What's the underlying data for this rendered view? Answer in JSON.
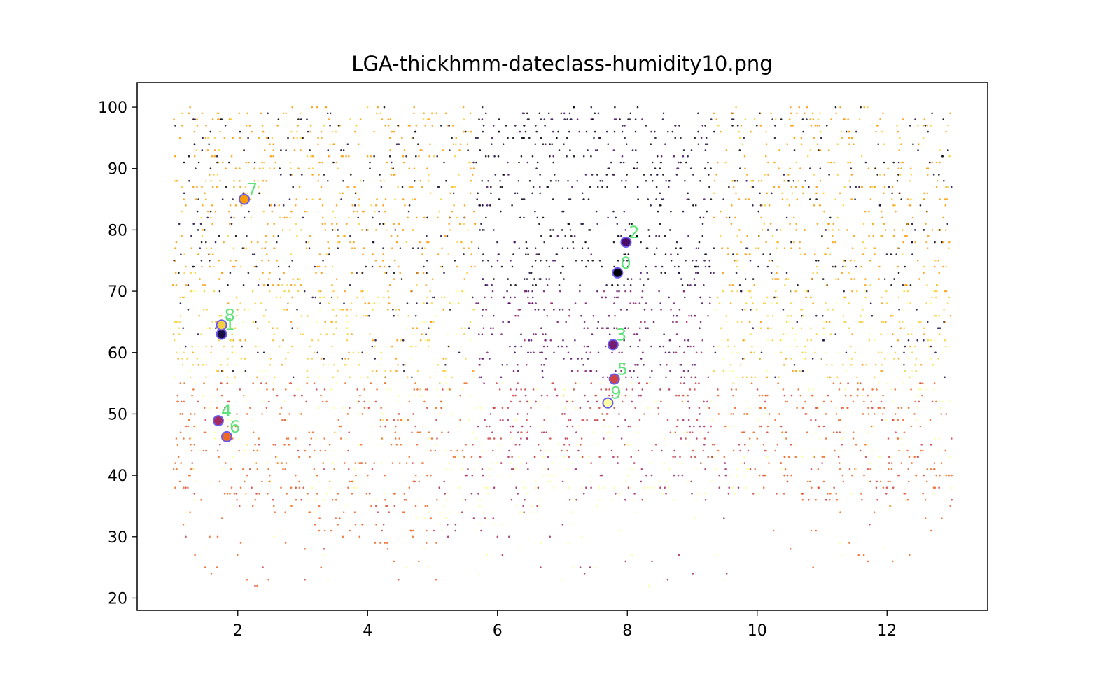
{
  "chart_data": {
    "type": "scatter",
    "title": "LGA-thickhmm-dateclass-humidity10.png",
    "xlabel": "",
    "ylabel": "",
    "xlim": [
      0.45,
      13.55
    ],
    "ylim": [
      18,
      104
    ],
    "x_ticks": [
      2,
      4,
      6,
      8,
      10,
      12
    ],
    "y_ticks": [
      20,
      30,
      40,
      50,
      60,
      70,
      80,
      90,
      100
    ],
    "grid": false,
    "legend": "none",
    "colormap": "inferno",
    "background_points": {
      "x_range": [
        1,
        13
      ],
      "y_range": [
        22,
        100
      ],
      "description_hidden": true,
      "classes": [
        {
          "class_index": 0,
          "color": "#000004"
        },
        {
          "class_index": 1,
          "color": "#1b0c41"
        },
        {
          "class_index": 2,
          "color": "#4a0c6b"
        },
        {
          "class_index": 3,
          "color": "#781c6d"
        },
        {
          "class_index": 4,
          "color": "#a52c60"
        },
        {
          "class_index": 5,
          "color": "#cf4446"
        },
        {
          "class_index": 6,
          "color": "#ed6925"
        },
        {
          "class_index": 7,
          "color": "#fb9b06"
        },
        {
          "class_index": 8,
          "color": "#f7d13d"
        },
        {
          "class_index": 9,
          "color": "#fcffa4"
        }
      ]
    },
    "centroids": [
      {
        "label": "0",
        "x": 7.85,
        "y": 73.0,
        "fill": "#000004"
      },
      {
        "label": "1",
        "x": 1.75,
        "y": 63.0,
        "fill": "#1b0c41"
      },
      {
        "label": "2",
        "x": 7.98,
        "y": 78.0,
        "fill": "#4a0c6b"
      },
      {
        "label": "3",
        "x": 7.78,
        "y": 61.3,
        "fill": "#781c6d"
      },
      {
        "label": "4",
        "x": 1.7,
        "y": 48.9,
        "fill": "#a52c60"
      },
      {
        "label": "5",
        "x": 7.8,
        "y": 55.7,
        "fill": "#cf4446"
      },
      {
        "label": "6",
        "x": 1.83,
        "y": 46.3,
        "fill": "#ed6925"
      },
      {
        "label": "7",
        "x": 2.1,
        "y": 85.0,
        "fill": "#fb9b06"
      },
      {
        "label": "8",
        "x": 1.75,
        "y": 64.5,
        "fill": "#f7d13d"
      },
      {
        "label": "9",
        "x": 7.7,
        "y": 51.8,
        "fill": "#fcffa4"
      }
    ],
    "centroid_ring_color": "#6a5cf0",
    "centroid_label_color": "#5ee27a"
  }
}
